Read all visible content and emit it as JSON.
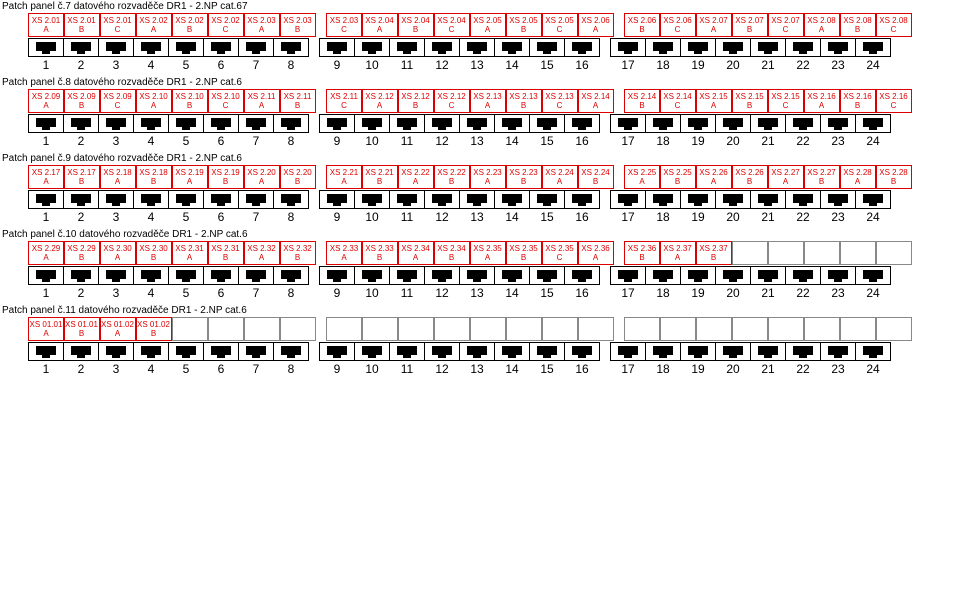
{
  "colors": {
    "label_border": "#d00",
    "label_text": "#d00",
    "empty_border": "#888",
    "jack_fill": "#000",
    "background": "#ffffff"
  },
  "dimensions": {
    "port_width": 36,
    "label_height": 24,
    "jack_height": 19,
    "group_gap": 10,
    "label_fontsize": 8,
    "num_fontsize": 12,
    "title_fontsize": 10
  },
  "group_sizes": [
    8,
    8,
    8
  ],
  "port_numbers": [
    1,
    2,
    3,
    4,
    5,
    6,
    7,
    8,
    9,
    10,
    11,
    12,
    13,
    14,
    15,
    16,
    17,
    18,
    19,
    20,
    21,
    22,
    23,
    24
  ],
  "panels": [
    {
      "title": "Patch panel č.7 datového rozvaděče DR1 - 2.NP cat.67",
      "ports": [
        {
          "sock": "XS 2.01",
          "sub": "A"
        },
        {
          "sock": "XS 2.01",
          "sub": "B"
        },
        {
          "sock": "XS 2.01",
          "sub": "C"
        },
        {
          "sock": "XS 2.02",
          "sub": "A"
        },
        {
          "sock": "XS 2.02",
          "sub": "B"
        },
        {
          "sock": "XS 2.02",
          "sub": "C"
        },
        {
          "sock": "XS 2.03",
          "sub": "A"
        },
        {
          "sock": "XS 2.03",
          "sub": "B"
        },
        {
          "sock": "XS 2.03",
          "sub": "C"
        },
        {
          "sock": "XS 2.04",
          "sub": "A"
        },
        {
          "sock": "XS 2.04",
          "sub": "B"
        },
        {
          "sock": "XS 2.04",
          "sub": "C"
        },
        {
          "sock": "XS 2.05",
          "sub": "A"
        },
        {
          "sock": "XS 2.05",
          "sub": "B"
        },
        {
          "sock": "XS 2.05",
          "sub": "C"
        },
        {
          "sock": "XS 2.06",
          "sub": "A"
        },
        {
          "sock": "XS 2.06",
          "sub": "B"
        },
        {
          "sock": "XS 2.06",
          "sub": "C"
        },
        {
          "sock": "XS 2.07",
          "sub": "A"
        },
        {
          "sock": "XS 2.07",
          "sub": "B"
        },
        {
          "sock": "XS 2.07",
          "sub": "C"
        },
        {
          "sock": "XS 2.08",
          "sub": "A"
        },
        {
          "sock": "XS 2.08",
          "sub": "B"
        },
        {
          "sock": "XS 2.08",
          "sub": "C"
        }
      ]
    },
    {
      "title": "Patch panel č.8 datového rozvaděče DR1 - 2.NP cat.6",
      "ports": [
        {
          "sock": "XS 2.09",
          "sub": "A"
        },
        {
          "sock": "XS 2.09",
          "sub": "B"
        },
        {
          "sock": "XS 2.09",
          "sub": "C"
        },
        {
          "sock": "XS 2.10",
          "sub": "A"
        },
        {
          "sock": "XS 2.10",
          "sub": "B"
        },
        {
          "sock": "XS 2.10",
          "sub": "C"
        },
        {
          "sock": "XS 2.11",
          "sub": "A"
        },
        {
          "sock": "XS 2.11",
          "sub": "B"
        },
        {
          "sock": "XS 2.11",
          "sub": "C"
        },
        {
          "sock": "XS 2.12",
          "sub": "A"
        },
        {
          "sock": "XS 2.12",
          "sub": "B"
        },
        {
          "sock": "XS 2.12",
          "sub": "C"
        },
        {
          "sock": "XS 2.13",
          "sub": "A"
        },
        {
          "sock": "XS 2.13",
          "sub": "B"
        },
        {
          "sock": "XS 2.13",
          "sub": "C"
        },
        {
          "sock": "XS 2.14",
          "sub": "A"
        },
        {
          "sock": "XS 2.14",
          "sub": "B"
        },
        {
          "sock": "XS 2.14",
          "sub": "C"
        },
        {
          "sock": "XS 2.15",
          "sub": "A"
        },
        {
          "sock": "XS 2.15",
          "sub": "B"
        },
        {
          "sock": "XS 2.15",
          "sub": "C"
        },
        {
          "sock": "XS 2.16",
          "sub": "A"
        },
        {
          "sock": "XS 2.16",
          "sub": "B"
        },
        {
          "sock": "XS 2.16",
          "sub": "C"
        }
      ]
    },
    {
      "title": "Patch panel č.9 datového rozvaděče DR1 - 2.NP cat.6",
      "ports": [
        {
          "sock": "XS 2.17",
          "sub": "A"
        },
        {
          "sock": "XS 2.17",
          "sub": "B"
        },
        {
          "sock": "XS 2.18",
          "sub": "A"
        },
        {
          "sock": "XS 2.18",
          "sub": "B"
        },
        {
          "sock": "XS 2.19",
          "sub": "A"
        },
        {
          "sock": "XS 2.19",
          "sub": "B"
        },
        {
          "sock": "XS 2.20",
          "sub": "A"
        },
        {
          "sock": "XS 2.20",
          "sub": "B"
        },
        {
          "sock": "XS 2.21",
          "sub": "A"
        },
        {
          "sock": "XS 2.21",
          "sub": "B"
        },
        {
          "sock": "XS 2.22",
          "sub": "A"
        },
        {
          "sock": "XS 2.22",
          "sub": "B"
        },
        {
          "sock": "XS 2.23",
          "sub": "A"
        },
        {
          "sock": "XS 2.23",
          "sub": "B"
        },
        {
          "sock": "XS 2.24",
          "sub": "A"
        },
        {
          "sock": "XS 2.24",
          "sub": "B"
        },
        {
          "sock": "XS 2.25",
          "sub": "A"
        },
        {
          "sock": "XS 2.25",
          "sub": "B"
        },
        {
          "sock": "XS 2.26",
          "sub": "A"
        },
        {
          "sock": "XS 2.26",
          "sub": "B"
        },
        {
          "sock": "XS 2.27",
          "sub": "A"
        },
        {
          "sock": "XS 2.27",
          "sub": "B"
        },
        {
          "sock": "XS 2.28",
          "sub": "A"
        },
        {
          "sock": "XS 2.28",
          "sub": "B"
        }
      ]
    },
    {
      "title": "Patch panel č.10 datového rozvaděče DR1 - 2.NP cat.6",
      "ports": [
        {
          "sock": "XS 2.29",
          "sub": "A"
        },
        {
          "sock": "XS 2.29",
          "sub": "B"
        },
        {
          "sock": "XS 2.30",
          "sub": "A"
        },
        {
          "sock": "XS 2.30",
          "sub": "B"
        },
        {
          "sock": "XS 2.31",
          "sub": "A"
        },
        {
          "sock": "XS 2.31",
          "sub": "B"
        },
        {
          "sock": "XS 2.32",
          "sub": "A"
        },
        {
          "sock": "XS 2.32",
          "sub": "B"
        },
        {
          "sock": "XS 2.33",
          "sub": "A"
        },
        {
          "sock": "XS 2.33",
          "sub": "B"
        },
        {
          "sock": "XS 2.34",
          "sub": "A"
        },
        {
          "sock": "XS 2.34",
          "sub": "B"
        },
        {
          "sock": "XS 2.35",
          "sub": "A"
        },
        {
          "sock": "XS 2.35",
          "sub": "B"
        },
        {
          "sock": "XS 2.35",
          "sub": "C"
        },
        {
          "sock": "XS 2.36",
          "sub": "A"
        },
        {
          "sock": "XS 2.36",
          "sub": "B"
        },
        {
          "sock": "XS 2.37",
          "sub": "A"
        },
        {
          "sock": "XS 2.37",
          "sub": "B"
        },
        null,
        null,
        null,
        null,
        null
      ]
    },
    {
      "title": "Patch panel č.11 datového rozvaděče DR1 - 2.NP cat.6",
      "ports": [
        {
          "sock": "XS 01.01",
          "sub": "A"
        },
        {
          "sock": "XS 01.01",
          "sub": "B"
        },
        {
          "sock": "XS 01.02",
          "sub": "A"
        },
        {
          "sock": "XS 01.02",
          "sub": "B"
        },
        null,
        null,
        null,
        null,
        null,
        null,
        null,
        null,
        null,
        null,
        null,
        null,
        null,
        null,
        null,
        null,
        null,
        null,
        null,
        null
      ]
    }
  ]
}
